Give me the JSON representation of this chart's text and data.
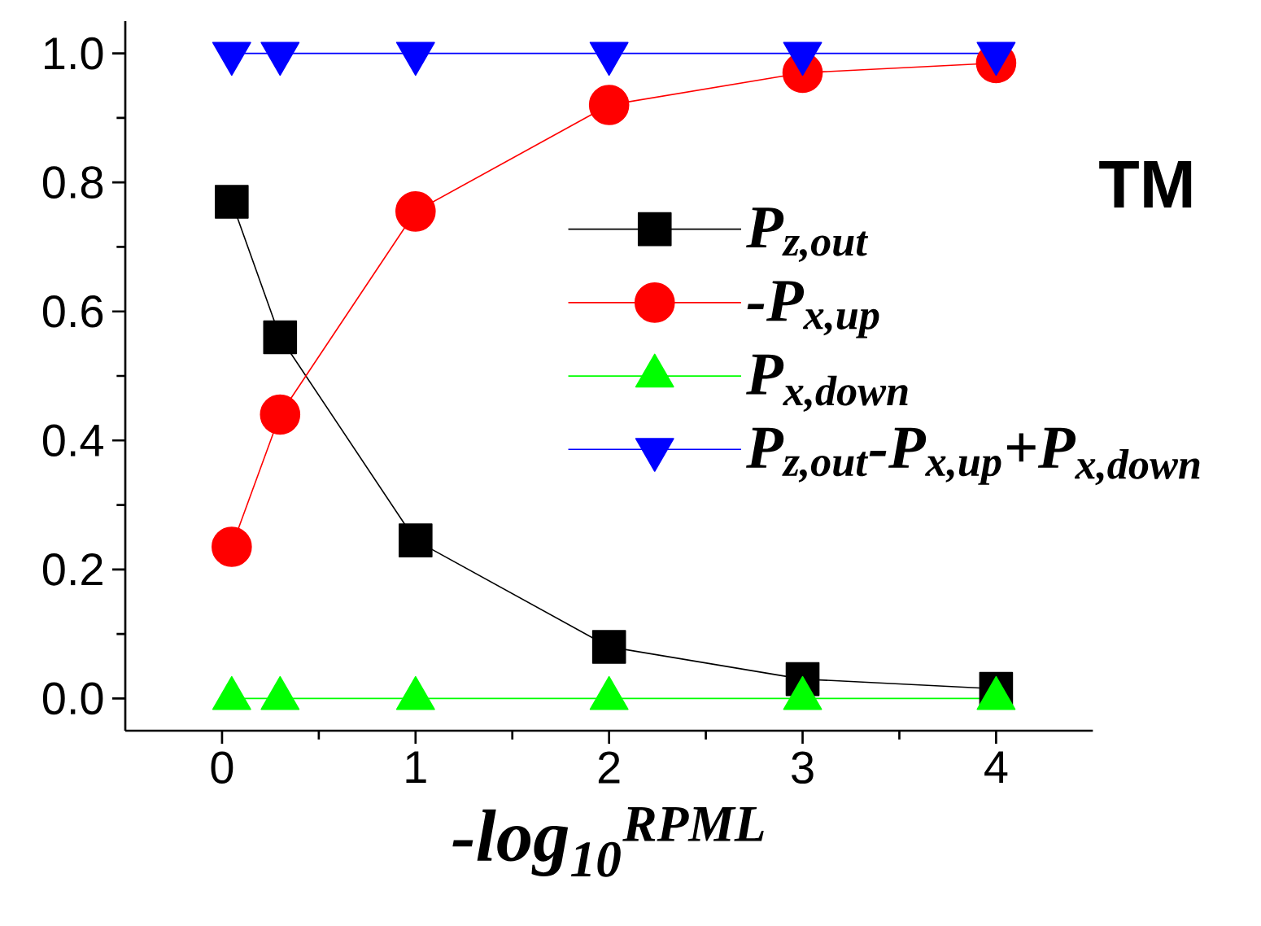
{
  "chart_data": {
    "type": "line",
    "x": [
      0.05,
      0.3,
      1,
      2,
      3,
      4
    ],
    "series": [
      {
        "name": "P$_{z,out}$",
        "color": "#000000",
        "marker": "square",
        "values": [
          0.77,
          0.56,
          0.245,
          0.08,
          0.03,
          0.015
        ]
      },
      {
        "name": "-P$_{x,up}$",
        "color": "#ff0000",
        "marker": "circle",
        "values": [
          0.235,
          0.44,
          0.755,
          0.92,
          0.97,
          0.985
        ]
      },
      {
        "name": "P$_{x,down}$",
        "color": "#00ff00",
        "marker": "triangle",
        "values": [
          0,
          0,
          0,
          0,
          0,
          0
        ]
      },
      {
        "name": "P$_{z,out}$-P$_{x,up}$+P$_{x,down}$",
        "color": "#0000ff",
        "marker": "triangle-down",
        "values": [
          1,
          1,
          1,
          1,
          1,
          1
        ]
      }
    ],
    "xlabel": "-log$_{10}$$^{RPML}$",
    "annotations": [
      "TM"
    ],
    "xlim": [
      -0.5,
      4.5
    ],
    "ylim": [
      -0.05,
      1.05
    ],
    "xticks": [
      0,
      1,
      2,
      3,
      4
    ],
    "yticks": [
      {
        "value": 0,
        "label": "0.0"
      },
      {
        "value": 0.2,
        "label": "0.2"
      },
      {
        "value": 0.4,
        "label": "0.4"
      },
      {
        "value": 0.6,
        "label": "0.6"
      },
      {
        "value": 0.8,
        "label": "0.8"
      },
      {
        "value": 1,
        "label": "1.0"
      }
    ],
    "grid": false,
    "legend": "right",
    "line_style": "solid"
  }
}
